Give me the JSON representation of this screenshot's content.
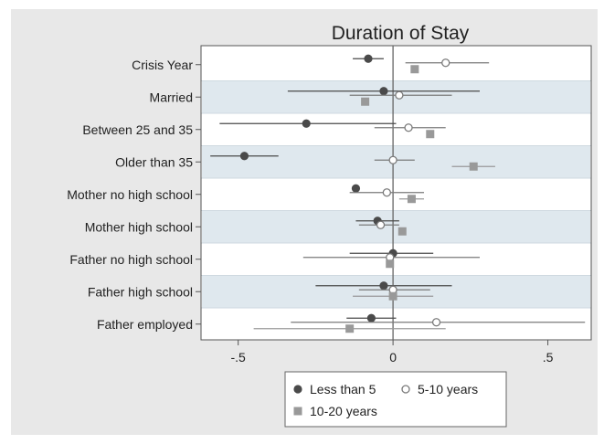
{
  "chart_data": {
    "type": "scatter",
    "subtype": "coefficient-plot",
    "title": "Duration of Stay",
    "xlabel": "",
    "ylabel": "",
    "xlim": [
      -0.62,
      0.64
    ],
    "xticks": [
      {
        "value": -0.5,
        "label": "-.5"
      },
      {
        "value": 0,
        "label": "0"
      },
      {
        "value": 0.5,
        "label": ".5"
      }
    ],
    "reference_line": 0,
    "categories": [
      "Crisis Year",
      "Married",
      "Between 25 and 35",
      "Older than 35",
      "Mother no high school",
      "Mother high school",
      "Father no high school",
      "Father high school",
      "Father employed"
    ],
    "series": [
      {
        "name": "Less than 5",
        "marker": "filled-circle",
        "color": "#4a4a4a",
        "estimates": [
          -0.08,
          -0.03,
          -0.28,
          -0.48,
          -0.12,
          -0.05,
          0.0,
          -0.03,
          -0.07
        ],
        "ci_low": [
          -0.13,
          -0.34,
          -0.56,
          -0.59,
          -0.12,
          -0.12,
          -0.14,
          -0.25,
          -0.15
        ],
        "ci_high": [
          -0.03,
          0.28,
          0.01,
          -0.37,
          -0.12,
          0.02,
          0.13,
          0.19,
          0.01
        ]
      },
      {
        "name": "5-10 years",
        "marker": "hollow-circle",
        "color": "#7a7a7a",
        "estimates": [
          0.17,
          0.02,
          0.05,
          0.0,
          -0.02,
          -0.04,
          -0.01,
          0.0,
          0.14
        ],
        "ci_low": [
          0.04,
          -0.14,
          -0.06,
          -0.06,
          -0.14,
          -0.11,
          -0.29,
          -0.11,
          -0.33
        ],
        "ci_high": [
          0.31,
          0.19,
          0.17,
          0.07,
          0.1,
          0.02,
          0.28,
          0.12,
          0.62
        ]
      },
      {
        "name": "10-20 years",
        "marker": "filled-square",
        "color": "#999999",
        "estimates": [
          0.07,
          -0.09,
          0.12,
          0.26,
          0.06,
          0.03,
          -0.01,
          0.0,
          -0.14
        ],
        "ci_low": [
          0.07,
          -0.09,
          0.12,
          0.19,
          0.02,
          0.03,
          -0.01,
          -0.13,
          -0.45
        ],
        "ci_high": [
          0.07,
          -0.09,
          0.12,
          0.33,
          0.1,
          0.03,
          -0.01,
          0.13,
          0.17
        ]
      }
    ],
    "grid": false,
    "row_bands": true,
    "legend": {
      "placement": "bottom",
      "columns": 2
    },
    "colors": {
      "outer_background": "#e8e8e8",
      "plot_background": "#ffffff",
      "band_fill": "#dfe8ee",
      "axis": "#555555",
      "text": "#222222"
    }
  }
}
